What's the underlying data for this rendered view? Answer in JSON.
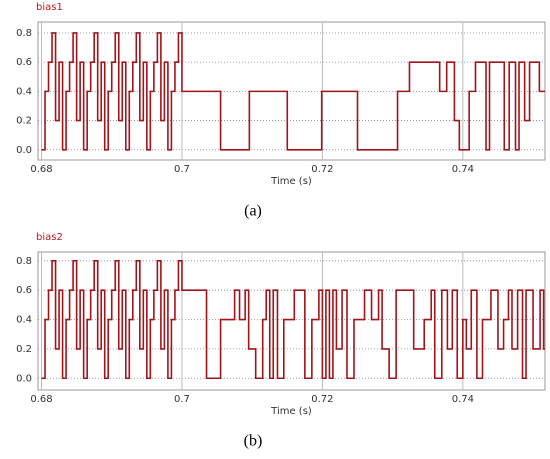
{
  "chart_data": [
    {
      "type": "line",
      "step": "post",
      "title": "bias1",
      "xlabel": "Time (s)",
      "caption": "(a)",
      "color": "#a0141a",
      "grid": true,
      "xlim": [
        0.6795,
        0.7517
      ],
      "ylim": [
        -0.07,
        0.875
      ],
      "xticks": [
        0.68,
        0.7,
        0.72,
        0.74
      ],
      "yticks": [
        {
          "value": 0,
          "label": "0.0"
        },
        0.2,
        0.4,
        0.6,
        0.8
      ],
      "x": [
        0.68,
        0.6805,
        0.681,
        0.6815,
        0.682,
        0.6825,
        0.683,
        0.6835,
        0.684,
        0.6845,
        0.685,
        0.6855,
        0.686,
        0.6865,
        0.687,
        0.6875,
        0.688,
        0.6885,
        0.689,
        0.6895,
        0.69,
        0.6905,
        0.691,
        0.6915,
        0.692,
        0.6925,
        0.693,
        0.6935,
        0.694,
        0.6945,
        0.695,
        0.6955,
        0.696,
        0.6965,
        0.697,
        0.6975,
        0.698,
        0.6985,
        0.699,
        0.6995,
        0.7,
        0.7055,
        0.7096,
        0.715,
        0.7199,
        0.725,
        0.7307,
        0.7324,
        0.7367,
        0.7377,
        0.7388,
        0.7395,
        0.7409,
        0.7418,
        0.7433,
        0.7438,
        0.7459,
        0.7466,
        0.7475,
        0.748,
        0.7488,
        0.7495,
        0.7509
      ],
      "values": [
        0.0,
        0.4,
        0.6,
        0.8,
        0.2,
        0.6,
        0.0,
        0.4,
        0.6,
        0.8,
        0.2,
        0.6,
        0.0,
        0.4,
        0.6,
        0.8,
        0.2,
        0.6,
        0.0,
        0.4,
        0.6,
        0.8,
        0.2,
        0.6,
        0.0,
        0.4,
        0.6,
        0.8,
        0.2,
        0.6,
        0.0,
        0.4,
        0.6,
        0.8,
        0.2,
        0.6,
        0.0,
        0.4,
        0.6,
        0.8,
        0.4,
        0.0,
        0.4,
        0.0,
        0.4,
        0.0,
        0.4,
        0.6,
        0.4,
        0.6,
        0.2,
        0.0,
        0.4,
        0.6,
        0.0,
        0.6,
        0.0,
        0.6,
        0.0,
        0.6,
        0.2,
        0.6,
        0.4
      ]
    },
    {
      "type": "line",
      "step": "post",
      "title": "bias2",
      "xlabel": "Time (s)",
      "caption": "(b)",
      "color": "#a0141a",
      "grid": true,
      "xlim": [
        0.6795,
        0.7517
      ],
      "ylim": [
        -0.08,
        0.86
      ],
      "xticks": [
        0.68,
        0.7,
        0.72,
        0.74
      ],
      "yticks": [
        {
          "value": 0,
          "label": "0.0"
        },
        0.2,
        0.4,
        0.6,
        0.8
      ],
      "x": [
        0.68,
        0.6805,
        0.681,
        0.6815,
        0.682,
        0.6825,
        0.683,
        0.6835,
        0.684,
        0.6845,
        0.685,
        0.6855,
        0.686,
        0.6865,
        0.687,
        0.6875,
        0.688,
        0.6885,
        0.689,
        0.6895,
        0.69,
        0.6905,
        0.691,
        0.6915,
        0.692,
        0.6925,
        0.693,
        0.6935,
        0.694,
        0.6945,
        0.695,
        0.6955,
        0.696,
        0.6965,
        0.697,
        0.6975,
        0.698,
        0.6985,
        0.699,
        0.6995,
        0.7,
        0.7035,
        0.7055,
        0.7075,
        0.7082,
        0.709,
        0.7095,
        0.7105,
        0.7115,
        0.712,
        0.7125,
        0.713,
        0.7136,
        0.7145,
        0.716,
        0.7175,
        0.7185,
        0.7195,
        0.72,
        0.7205,
        0.721,
        0.7215,
        0.722,
        0.7228,
        0.7235,
        0.7245,
        0.726,
        0.727,
        0.728,
        0.7285,
        0.7295,
        0.7305,
        0.733,
        0.7345,
        0.7355,
        0.736,
        0.737,
        0.7378,
        0.7385,
        0.7392,
        0.74,
        0.7405,
        0.7412,
        0.742,
        0.7428,
        0.744,
        0.745,
        0.7458,
        0.7465,
        0.747,
        0.7478,
        0.7485,
        0.749,
        0.75,
        0.751,
        0.7515
      ],
      "values": [
        0.0,
        0.4,
        0.6,
        0.8,
        0.2,
        0.6,
        0.0,
        0.4,
        0.6,
        0.8,
        0.2,
        0.6,
        0.0,
        0.4,
        0.6,
        0.8,
        0.2,
        0.6,
        0.0,
        0.4,
        0.6,
        0.8,
        0.2,
        0.6,
        0.0,
        0.4,
        0.6,
        0.8,
        0.2,
        0.6,
        0.0,
        0.4,
        0.6,
        0.8,
        0.2,
        0.6,
        0.0,
        0.4,
        0.6,
        0.8,
        0.6,
        0.0,
        0.4,
        0.6,
        0.4,
        0.6,
        0.2,
        0.0,
        0.4,
        0.6,
        0.0,
        0.6,
        0.0,
        0.4,
        0.6,
        0.0,
        0.4,
        0.6,
        0.0,
        0.6,
        0.0,
        0.6,
        0.2,
        0.6,
        0.0,
        0.4,
        0.6,
        0.4,
        0.6,
        0.2,
        0.0,
        0.6,
        0.2,
        0.4,
        0.6,
        0.0,
        0.6,
        0.2,
        0.6,
        0.0,
        0.4,
        0.2,
        0.6,
        0.0,
        0.4,
        0.6,
        0.2,
        0.4,
        0.6,
        0.2,
        0.6,
        0.0,
        0.6,
        0.2,
        0.6,
        0.2
      ]
    }
  ]
}
